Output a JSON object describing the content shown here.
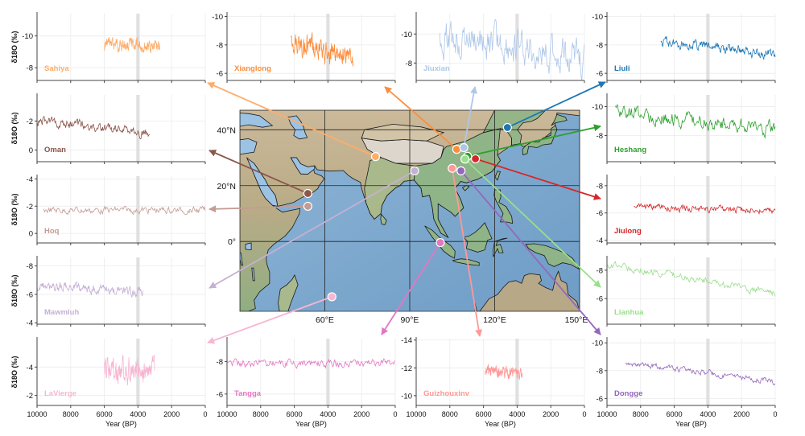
{
  "figure": {
    "y_axis_label": "δ18O (‰)",
    "x_axis_label": "Year (BP)",
    "x_ticks": [
      "10000",
      "8000",
      "6000",
      "4000",
      "2000",
      "0"
    ],
    "event_band": {
      "from": 4100,
      "to": 3900,
      "color": "#d9d9d9"
    }
  },
  "map": {
    "lat_labels": [
      "40°N",
      "20°N",
      "0°"
    ],
    "lon_labels": [
      "60°E",
      "90°E",
      "120°E",
      "150°E"
    ],
    "extent": {
      "lon_min": 30,
      "lon_max": 150,
      "lat_min": -25,
      "lat_max": 47
    }
  },
  "chart_data": [
    {
      "type": "line",
      "title": "Sahiya",
      "color": "#fdae6b",
      "ylabel": "δ18O (‰)",
      "xlabel": "",
      "xlim": [
        10000,
        0
      ],
      "ylim": [
        -7.2,
        -11.4
      ],
      "yticks": [
        "-10",
        "-8"
      ],
      "x_range": [
        6000,
        2700
      ],
      "y_mean": -9.4,
      "y_amp": 0.4,
      "trend": -0.2,
      "site": {
        "lon": 77.9,
        "lat": 30.4
      }
    },
    {
      "type": "line",
      "title": "Xianglong",
      "color": "#fd8d3c",
      "ylabel": "",
      "xlabel": "",
      "xlim": [
        10000,
        0
      ],
      "ylim": [
        -5.5,
        -10.2
      ],
      "yticks": [
        "-10",
        "-8",
        "-6"
      ],
      "x_range": [
        6200,
        2500
      ],
      "y_mean": -7.6,
      "y_amp": 0.7,
      "trend": -1.2,
      "site": {
        "lon": 106.6,
        "lat": 33.0
      }
    },
    {
      "type": "line",
      "title": "Jiuxian",
      "color": "#aec7e8",
      "ylabel": "",
      "xlabel": "",
      "xlim": [
        10000,
        0
      ],
      "ylim": [
        -6.8,
        -11.4
      ],
      "yticks": [
        "-10",
        "-8"
      ],
      "x_range": [
        8600,
        0
      ],
      "y_mean": -9.0,
      "y_amp": 1.2,
      "trend": -1.5,
      "site": {
        "lon": 109.1,
        "lat": 33.6
      }
    },
    {
      "type": "line",
      "title": "Liuli",
      "color": "#1f77b4",
      "ylabel": "",
      "xlabel": "",
      "xlim": [
        10000,
        0
      ],
      "ylim": [
        -5.5,
        -10.2
      ],
      "yticks": [
        "-10",
        "-8",
        "-6"
      ],
      "x_range": [
        6800,
        0
      ],
      "y_mean": -7.8,
      "y_amp": 0.35,
      "trend": -0.9,
      "site": {
        "lon": 124.5,
        "lat": 40.8
      }
    },
    {
      "type": "line",
      "title": "Oman",
      "color": "#8c564b",
      "ylabel": "δ18O (‰)",
      "xlabel": "",
      "xlim": [
        10000,
        0
      ],
      "ylim": [
        0.8,
        -3.8
      ],
      "yticks": [
        "-2",
        "0"
      ],
      "x_range": [
        10000,
        3300
      ],
      "y_mean": -1.6,
      "y_amp": 0.3,
      "trend": -0.9,
      "site": {
        "lon": 54.0,
        "lat": 17.2
      }
    },
    {
      "type": "line",
      "title": "Heshang",
      "color": "#2ca02c",
      "ylabel": "",
      "xlabel": "",
      "xlim": [
        10000,
        0
      ],
      "ylim": [
        -6.2,
        -10.8
      ],
      "yticks": [
        "-10",
        "-8"
      ],
      "x_range": [
        9500,
        0
      ],
      "y_mean": -9.0,
      "y_amp": 0.5,
      "trend": -1.3,
      "site": {
        "lon": 110.4,
        "lat": 30.5
      }
    },
    {
      "type": "line",
      "title": "Hoq",
      "color": "#c49c94",
      "ylabel": "δ18O (‰)",
      "xlabel": "",
      "xlim": [
        10000,
        0
      ],
      "ylim": [
        0.7,
        -4.2
      ],
      "yticks": [
        "-4",
        "-2",
        "0"
      ],
      "x_range": [
        9600,
        0
      ],
      "y_mean": -1.7,
      "y_amp": 0.25,
      "trend": 0.0,
      "site": {
        "lon": 54.0,
        "lat": 12.6
      }
    },
    {
      "type": "line",
      "title": "Jiulong",
      "color": "#d62728",
      "ylabel": "",
      "xlabel": "",
      "xlim": [
        10000,
        0
      ],
      "ylim": [
        -3.8,
        -8.7
      ],
      "yticks": [
        "-8",
        "-6",
        "-4"
      ],
      "x_range": [
        8400,
        0
      ],
      "y_mean": -6.3,
      "y_amp": 0.25,
      "trend": -0.3,
      "site": {
        "lon": 113.2,
        "lat": 29.6
      }
    },
    {
      "type": "line",
      "title": "Mawmluh",
      "color": "#c5b0d5",
      "ylabel": "δ18O (‰)",
      "xlabel": "",
      "xlim": [
        10000,
        0
      ],
      "ylim": [
        -3.9,
        -8.6
      ],
      "yticks": [
        "-8",
        "-6",
        "-4"
      ],
      "x_range": [
        10000,
        3700
      ],
      "y_mean": -6.4,
      "y_amp": 0.35,
      "trend": -0.4,
      "site": {
        "lon": 91.7,
        "lat": 25.3
      }
    },
    {
      "type": "line",
      "title": "Lianhua",
      "color": "#98df8a",
      "ylabel": "",
      "xlabel": "",
      "xlim": [
        10000,
        0
      ],
      "ylim": [
        -4.2,
        -8.9
      ],
      "yticks": [
        "-8",
        "-6"
      ],
      "x_range": [
        10000,
        0
      ],
      "y_mean": -7.4,
      "y_amp": 0.25,
      "trend": -2.1,
      "site": {
        "lon": 109.5,
        "lat": 29.5
      }
    },
    {
      "type": "line",
      "title": "LaVierge",
      "color": "#f7b6d2",
      "ylabel": "δ18O (‰)",
      "xlabel": "Year (BP)",
      "xlim": [
        10000,
        0
      ],
      "ylim": [
        -1.3,
        -6.0
      ],
      "yticks": [
        "-4",
        "-2"
      ],
      "x_range": [
        6000,
        3000
      ],
      "y_mean": -3.8,
      "y_amp": 0.8,
      "trend": 0.0,
      "site": {
        "lon": 62.5,
        "lat": -19.8
      }
    },
    {
      "type": "line",
      "title": "Tangga",
      "color": "#e377c2",
      "ylabel": "",
      "xlabel": "Year (BP)",
      "xlim": [
        10000,
        0
      ],
      "ylim": [
        -5.3,
        -9.4
      ],
      "yticks": [
        "-8",
        "-6"
      ],
      "x_range": [
        10000,
        0
      ],
      "y_mean": -7.9,
      "y_amp": 0.25,
      "trend": 0.0,
      "site": {
        "lon": 100.8,
        "lat": -0.4
      }
    },
    {
      "type": "line",
      "title": "Guizhouxinv",
      "color": "#ff9896",
      "ylabel": "",
      "xlabel": "Year (BP)",
      "xlim": [
        10000,
        0
      ],
      "ylim": [
        -9.3,
        -14.1
      ],
      "yticks": [
        "-14",
        "-12",
        "-10"
      ],
      "x_range": [
        5900,
        3700
      ],
      "y_mean": -11.7,
      "y_amp": 0.35,
      "trend": -0.2,
      "site": {
        "lon": 105.0,
        "lat": 26.2
      }
    },
    {
      "type": "line",
      "title": "Dongge",
      "color": "#9467bd",
      "ylabel": "",
      "xlabel": "Year (BP)",
      "xlim": [
        10000,
        0
      ],
      "ylim": [
        -5.5,
        -10.3
      ],
      "yticks": [
        "-10",
        "-8",
        "-6"
      ],
      "x_range": [
        8900,
        0
      ],
      "y_mean": -7.9,
      "y_amp": 0.2,
      "trend": -1.4,
      "site": {
        "lon": 108.1,
        "lat": 25.3
      }
    }
  ]
}
